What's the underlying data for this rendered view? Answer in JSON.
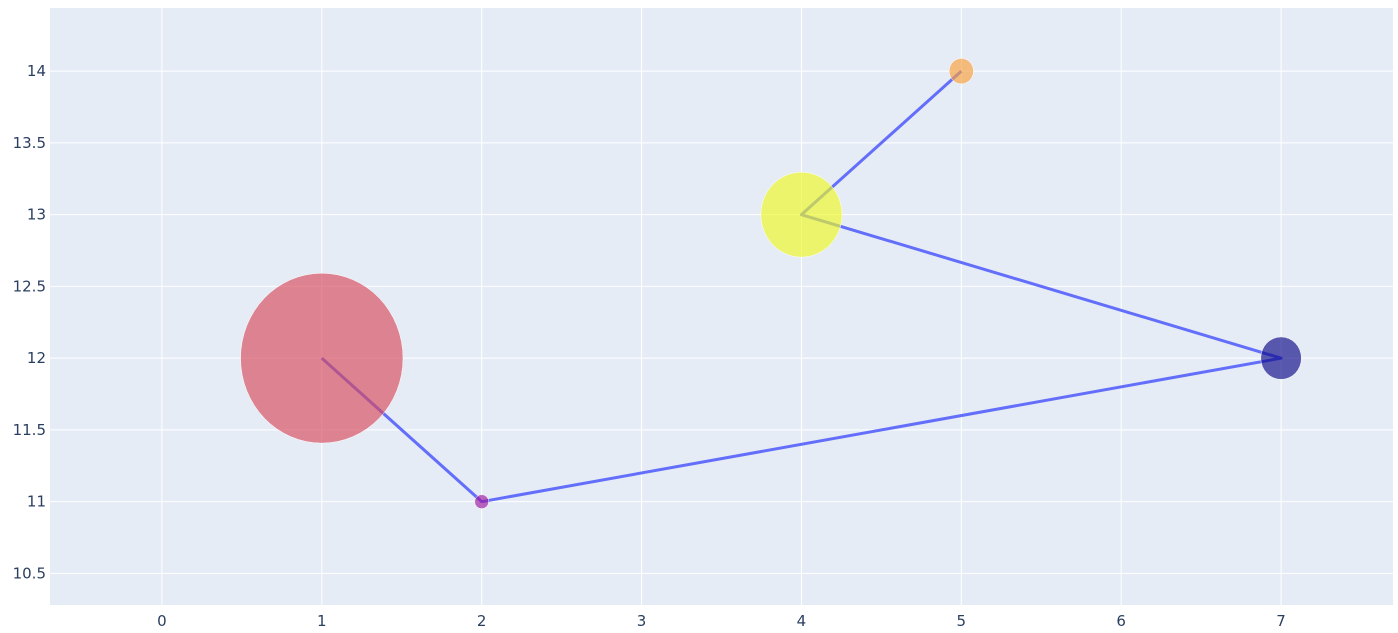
{
  "chart_data": {
    "type": "scatter",
    "mode": "lines+markers",
    "title": "",
    "xlabel": "",
    "ylabel": "",
    "xlim": [
      -0.7,
      7.7
    ],
    "ylim": [
      10.28,
      14.44
    ],
    "x_ticks": [
      {
        "value": 0,
        "label": "0"
      },
      {
        "value": 1,
        "label": "1"
      },
      {
        "value": 2,
        "label": "2"
      },
      {
        "value": 3,
        "label": "3"
      },
      {
        "value": 4,
        "label": "4"
      },
      {
        "value": 5,
        "label": "5"
      },
      {
        "value": 6,
        "label": "6"
      },
      {
        "value": 7,
        "label": "7"
      }
    ],
    "y_ticks": [
      {
        "value": 10.5,
        "label": "10.5"
      },
      {
        "value": 11,
        "label": "11"
      },
      {
        "value": 11.5,
        "label": "11.5"
      },
      {
        "value": 12,
        "label": "12"
      },
      {
        "value": 12.5,
        "label": "12.5"
      },
      {
        "value": 13,
        "label": "13"
      },
      {
        "value": 13.5,
        "label": "13.5"
      },
      {
        "value": 14,
        "label": "14"
      }
    ],
    "grid": true,
    "legend": "none",
    "series": [
      {
        "line_color": "#636efa",
        "marker_opacity": 0.65,
        "points": [
          {
            "x": 1,
            "y": 12,
            "size": 40,
            "color": "#d84a5a"
          },
          {
            "x": 2,
            "y": 11,
            "size": 1.8,
            "color": "#9c179e"
          },
          {
            "x": 7,
            "y": 12,
            "size": 10,
            "color": "#0d0887"
          },
          {
            "x": 4,
            "y": 13,
            "size": 20,
            "color": "#f0f921"
          },
          {
            "x": 5,
            "y": 14,
            "size": 6,
            "color": "#fb9f3a"
          }
        ]
      }
    ],
    "colors": {
      "plot_background": "#e5ecf6",
      "grid": "#ffffff",
      "tick_text": "#2a3f5f"
    }
  }
}
